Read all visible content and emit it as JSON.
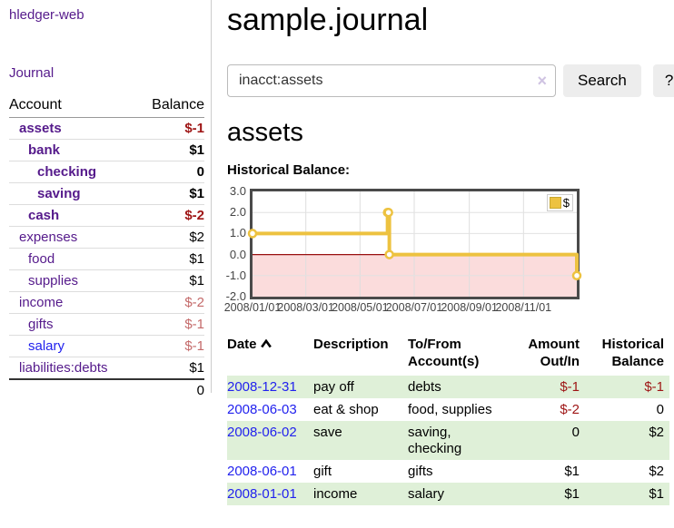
{
  "colors": {
    "purple_link": "#551a8b",
    "blue_link": "#2222ee",
    "negative_strong": "#9e1515",
    "negative_soft": "#c46a6a",
    "row_green": "#dff0d8",
    "chart_series_gold": "#edc240",
    "chart_negative_fill": "#fbdcdc",
    "chart_zero_line": "#991111"
  },
  "sidebar": {
    "app_title": "hledger-web",
    "nav": {
      "journal_label": "Journal"
    },
    "table": {
      "account_header": "Account",
      "balance_header": "Balance",
      "accounts": [
        {
          "name": "assets",
          "level": 1,
          "bold": true,
          "link_color": "purple",
          "balance": "$-1",
          "balance_class": "neg-strong"
        },
        {
          "name": "bank",
          "level": 2,
          "bold": true,
          "link_color": "purple",
          "balance": "$1",
          "balance_class": ""
        },
        {
          "name": "checking",
          "level": 3,
          "bold": true,
          "link_color": "purple",
          "balance": "0",
          "balance_class": ""
        },
        {
          "name": "saving",
          "level": 3,
          "bold": true,
          "link_color": "purple",
          "balance": "$1",
          "balance_class": ""
        },
        {
          "name": "cash",
          "level": 2,
          "bold": true,
          "link_color": "purple",
          "balance": "$-2",
          "balance_class": "neg-strong"
        },
        {
          "name": "expenses",
          "level": 1,
          "bold": false,
          "link_color": "purple",
          "balance": "$2",
          "balance_class": ""
        },
        {
          "name": "food",
          "level": 2,
          "bold": false,
          "link_color": "purple",
          "balance": "$1",
          "balance_class": ""
        },
        {
          "name": "supplies",
          "level": 2,
          "bold": false,
          "link_color": "purple",
          "balance": "$1",
          "balance_class": ""
        },
        {
          "name": "income",
          "level": 1,
          "bold": false,
          "link_color": "purple",
          "balance": "$-2",
          "balance_class": "neg-soft"
        },
        {
          "name": "gifts",
          "level": 2,
          "bold": false,
          "link_color": "purple",
          "balance": "$-1",
          "balance_class": "neg-soft"
        },
        {
          "name": "salary",
          "level": 2,
          "bold": false,
          "link_color": "blue",
          "balance": "$-1",
          "balance_class": "neg-soft"
        },
        {
          "name": "liabilities:debts",
          "level": 1,
          "bold": false,
          "link_color": "purple",
          "balance": "$1",
          "balance_class": ""
        }
      ],
      "total": "0"
    }
  },
  "main": {
    "title": "sample.journal",
    "search": {
      "value": "inacct:assets",
      "clear_icon": "×",
      "button_label": "Search",
      "help_label": "?"
    },
    "account_heading": "assets",
    "chart_label": "Historical Balance:",
    "register": {
      "headers": [
        "Date",
        "Description",
        "To/From Account(s)",
        "Amount Out/In",
        "Historical Balance"
      ],
      "rows": [
        {
          "date": "2008-12-31",
          "description": "pay off",
          "accounts": "debts",
          "amount": "$-1",
          "amount_neg": true,
          "balance": "$-1",
          "balance_neg": true,
          "green": true
        },
        {
          "date": "2008-06-03",
          "description": "eat & shop",
          "accounts": "food, supplies",
          "amount": "$-2",
          "amount_neg": true,
          "balance": "0",
          "balance_neg": false,
          "green": false
        },
        {
          "date": "2008-06-02",
          "description": "save",
          "accounts": "saving,\nchecking",
          "amount": "0",
          "amount_neg": false,
          "balance": "$2",
          "balance_neg": false,
          "green": true
        },
        {
          "date": "2008-06-01",
          "description": "gift",
          "accounts": "gifts",
          "amount": "$1",
          "amount_neg": false,
          "balance": "$2",
          "balance_neg": false,
          "green": false
        },
        {
          "date": "2008-01-01",
          "description": "income",
          "accounts": "salary",
          "amount": "$1",
          "amount_neg": false,
          "balance": "$1",
          "balance_neg": false,
          "green": true
        }
      ]
    }
  },
  "chart_data": {
    "type": "line",
    "title": "Historical Balance",
    "step": true,
    "series": [
      {
        "name": "$",
        "color": "#edc240",
        "points": [
          [
            "2008-01-01",
            1
          ],
          [
            "2008-06-01",
            2
          ],
          [
            "2008-06-02",
            2
          ],
          [
            "2008-06-03",
            0
          ],
          [
            "2008-12-31",
            -1
          ]
        ]
      }
    ],
    "xlim": [
      "2008-01-01",
      "2008-12-31"
    ],
    "ylim": [
      -2.0,
      3.0
    ],
    "yticks": [
      3.0,
      2.0,
      1.0,
      0.0,
      -1.0,
      -2.0
    ],
    "xticks": [
      "2008/01/01",
      "2008/03/01",
      "2008/05/01",
      "2008/07/01",
      "2008/09/01",
      "2008/11/01"
    ],
    "grid": true,
    "negative_region_shaded": true,
    "negative_fill": "#fbdcdc",
    "zero_line_color": "#991111",
    "legend_position": "top-right"
  }
}
